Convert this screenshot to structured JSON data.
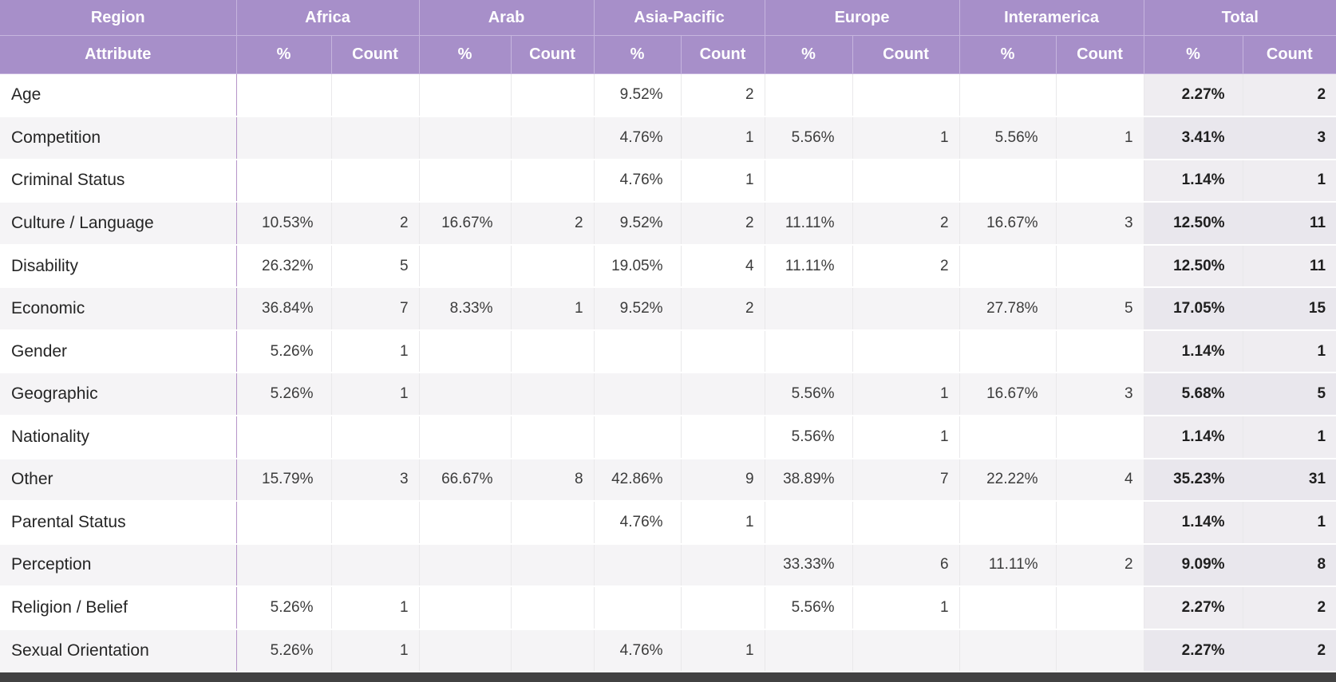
{
  "colors": {
    "header_bg": "#a78fc9",
    "header_text": "#ffffff",
    "header_gridline": "#c6b5de",
    "stripe": "#f5f4f6",
    "total_column_tint": "#efedf1",
    "total_column_tint_striped": "#e9e7ed",
    "attribute_divider": "#b694c9",
    "body_gridline": "#e9e8ea",
    "bottom_bar": "#424242"
  },
  "chart_data": {
    "type": "table",
    "corner": {
      "top": "Region",
      "bottom": "Attribute"
    },
    "groups": [
      "Africa",
      "Arab",
      "Asia-Pacific",
      "Europe",
      "Interamerica",
      "Total"
    ],
    "sub_columns": [
      "%",
      "Count"
    ],
    "rows": [
      {
        "attribute": "Age",
        "values": [
          "",
          "",
          "",
          "",
          "9.52%",
          "2",
          "",
          "",
          "",
          "",
          "2.27%",
          "2"
        ]
      },
      {
        "attribute": "Competition",
        "values": [
          "",
          "",
          "",
          "",
          "4.76%",
          "1",
          "5.56%",
          "1",
          "5.56%",
          "1",
          "3.41%",
          "3"
        ]
      },
      {
        "attribute": "Criminal Status",
        "values": [
          "",
          "",
          "",
          "",
          "4.76%",
          "1",
          "",
          "",
          "",
          "",
          "1.14%",
          "1"
        ]
      },
      {
        "attribute": "Culture / Language",
        "values": [
          "10.53%",
          "2",
          "16.67%",
          "2",
          "9.52%",
          "2",
          "11.11%",
          "2",
          "16.67%",
          "3",
          "12.50%",
          "11"
        ]
      },
      {
        "attribute": "Disability",
        "values": [
          "26.32%",
          "5",
          "",
          "",
          "19.05%",
          "4",
          "11.11%",
          "2",
          "",
          "",
          "12.50%",
          "11"
        ]
      },
      {
        "attribute": "Economic",
        "values": [
          "36.84%",
          "7",
          "8.33%",
          "1",
          "9.52%",
          "2",
          "",
          "",
          "27.78%",
          "5",
          "17.05%",
          "15"
        ]
      },
      {
        "attribute": "Gender",
        "values": [
          "5.26%",
          "1",
          "",
          "",
          "",
          "",
          "",
          "",
          "",
          "",
          "1.14%",
          "1"
        ]
      },
      {
        "attribute": "Geographic",
        "values": [
          "5.26%",
          "1",
          "",
          "",
          "",
          "",
          "5.56%",
          "1",
          "16.67%",
          "3",
          "5.68%",
          "5"
        ]
      },
      {
        "attribute": "Nationality",
        "values": [
          "",
          "",
          "",
          "",
          "",
          "",
          "5.56%",
          "1",
          "",
          "",
          "1.14%",
          "1"
        ]
      },
      {
        "attribute": "Other",
        "values": [
          "15.79%",
          "3",
          "66.67%",
          "8",
          "42.86%",
          "9",
          "38.89%",
          "7",
          "22.22%",
          "4",
          "35.23%",
          "31"
        ]
      },
      {
        "attribute": "Parental Status",
        "values": [
          "",
          "",
          "",
          "",
          "4.76%",
          "1",
          "",
          "",
          "",
          "",
          "1.14%",
          "1"
        ]
      },
      {
        "attribute": "Perception",
        "values": [
          "",
          "",
          "",
          "",
          "",
          "",
          "33.33%",
          "6",
          "11.11%",
          "2",
          "9.09%",
          "8"
        ]
      },
      {
        "attribute": "Religion / Belief",
        "values": [
          "5.26%",
          "1",
          "",
          "",
          "",
          "",
          "5.56%",
          "1",
          "",
          "",
          "2.27%",
          "2"
        ]
      },
      {
        "attribute": "Sexual Orientation",
        "values": [
          "5.26%",
          "1",
          "",
          "",
          "4.76%",
          "1",
          "",
          "",
          "",
          "",
          "2.27%",
          "2"
        ]
      }
    ]
  }
}
